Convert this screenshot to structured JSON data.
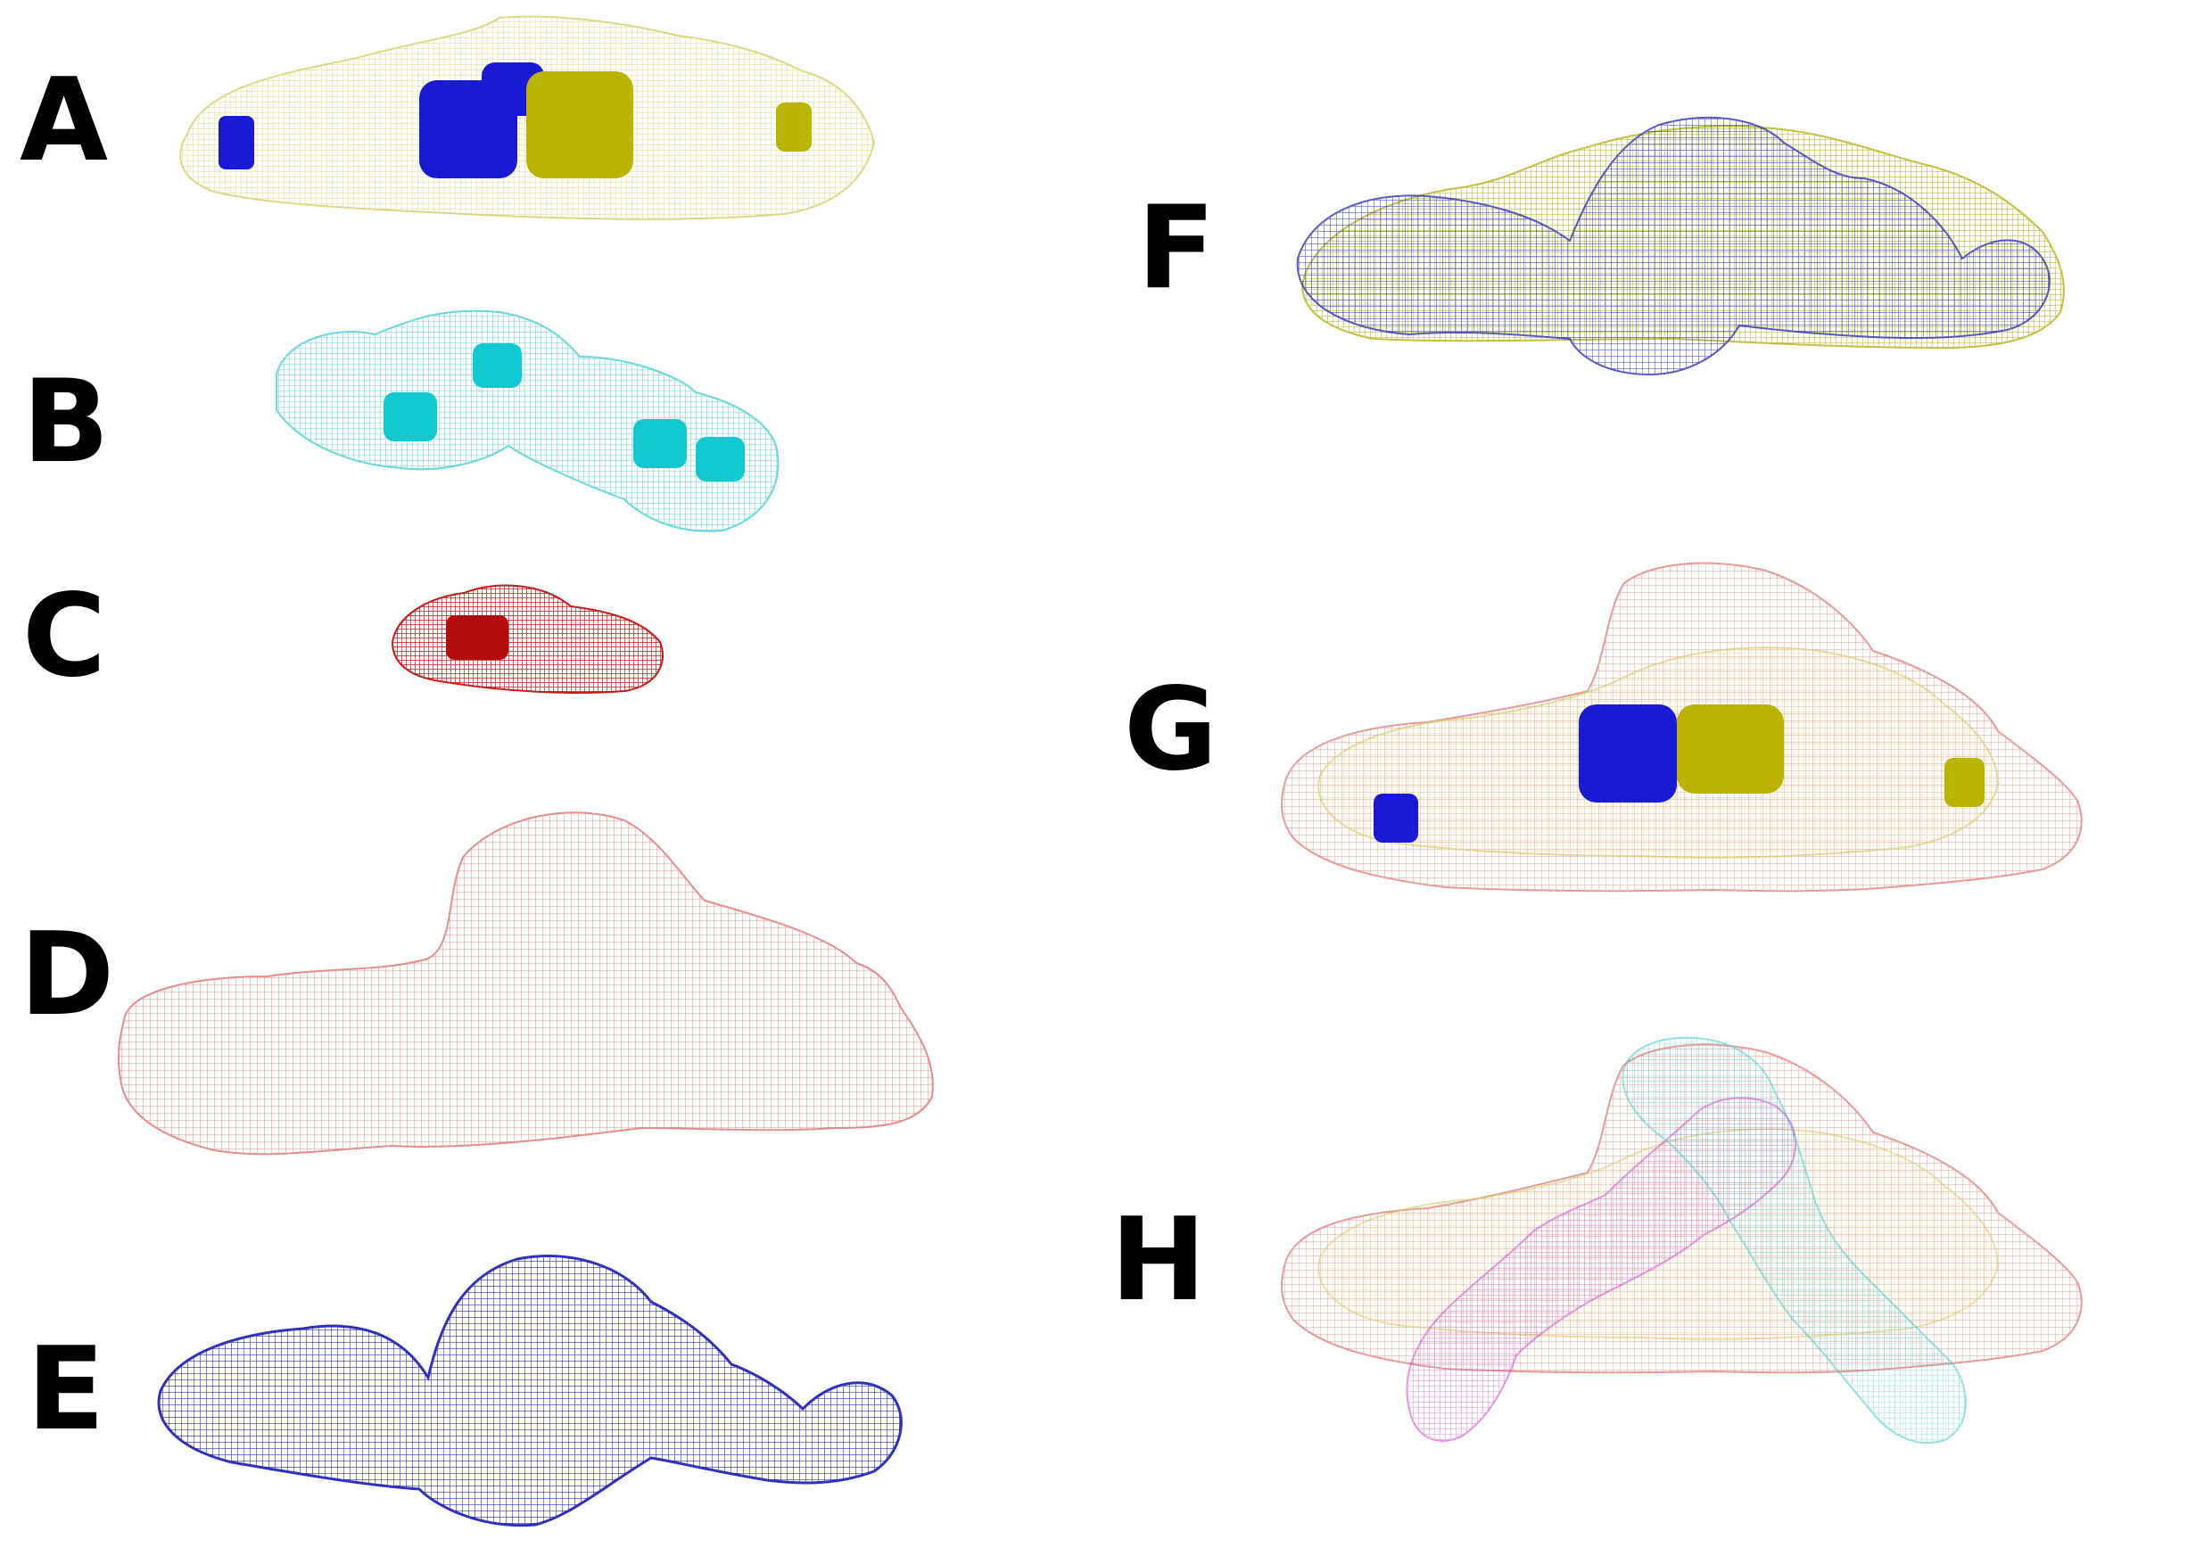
{
  "panels": {
    "A": {
      "label": "A",
      "mesh_color": "#d8d47a",
      "cartoon_colors": [
        "#1a1ad4",
        "#b8b400"
      ]
    },
    "B": {
      "label": "B",
      "mesh_color": "#58d4d8",
      "cartoon_colors": [
        "#10c8d0"
      ]
    },
    "C": {
      "label": "C",
      "mesh_color": "#c81818",
      "cartoon_colors": [
        "#c81818"
      ]
    },
    "D": {
      "label": "D",
      "mesh_color": "#e07878"
    },
    "E": {
      "label": "E",
      "mesh_color": "#3030c0"
    },
    "F": {
      "label": "F",
      "mesh_colors": [
        "#b8b420",
        "#3030b8"
      ]
    },
    "G": {
      "label": "G",
      "mesh_colors": [
        "#e07878",
        "#d8cc70"
      ],
      "cartoon_colors": [
        "#1a1ad4",
        "#b8b400"
      ]
    },
    "H": {
      "label": "H",
      "mesh_colors": [
        "#e07878",
        "#d8cc70",
        "#d040c8",
        "#40c8c8"
      ]
    }
  }
}
